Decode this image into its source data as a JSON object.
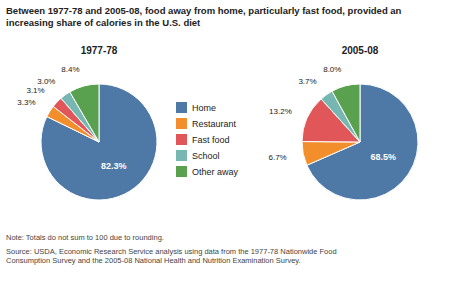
{
  "chart_data": {
    "type": "pie",
    "title": "Between 1977-78 and 2005-08, food away from home, particularly fast food, provided an\nincreasing share of calories in the U.S. diet",
    "categories": [
      "Home",
      "Restaurant",
      "Fast food",
      "School",
      "Other away"
    ],
    "series": [
      {
        "name": "1977-78",
        "values": [
          82.3,
          3.3,
          3.1,
          3.0,
          8.4
        ],
        "value_labels": [
          "82.3%",
          "3.3%",
          "3.1%",
          "3.0%",
          "8.4%"
        ]
      },
      {
        "name": "2005-08",
        "values": [
          68.5,
          6.7,
          13.2,
          3.7,
          8.0
        ],
        "value_labels": [
          "68.5%",
          "6.7%",
          "13.2%",
          "3.7%",
          "8.0%"
        ]
      }
    ],
    "data_labels": true,
    "legend": "center",
    "annotations": [
      "Note: Totals do not sum to 100 due to rounding.",
      "Source: USDA, Economic Research Service analysis using data from the 1977-78 Nationwide Food\nConsumption Survey and the 2005-08 National Health and Nutrition Examination Survey."
    ]
  }
}
